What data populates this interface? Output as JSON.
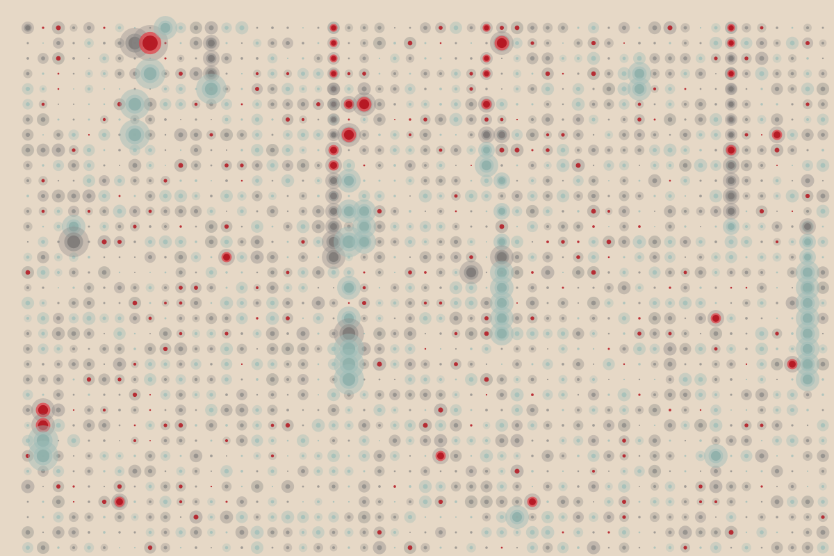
{
  "palette": {
    "background": "#e6d8c6",
    "grey": "#8a8886",
    "teal": "#9ebdb8",
    "red": "#b3141f",
    "red_ring": "#e0424a"
  },
  "grid": {
    "columns": 53,
    "rows": 35
  },
  "dots": [
    {
      "col": 0,
      "row": 0,
      "size": 2,
      "color": "grey"
    },
    {
      "col": 7,
      "row": 1,
      "size": 5,
      "color": "grey"
    },
    {
      "col": 8,
      "row": 1,
      "size": 6,
      "color": "red"
    },
    {
      "col": 9,
      "row": 0,
      "size": 4,
      "color": "teal"
    },
    {
      "col": 8,
      "row": 3,
      "size": 5,
      "color": "teal"
    },
    {
      "col": 7,
      "row": 5,
      "size": 5,
      "color": "teal"
    },
    {
      "col": 7,
      "row": 7,
      "size": 5,
      "color": "teal"
    },
    {
      "col": 12,
      "row": 1,
      "size": 3,
      "color": "grey"
    },
    {
      "col": 12,
      "row": 2,
      "size": 3,
      "color": "grey"
    },
    {
      "col": 12,
      "row": 3,
      "size": 3,
      "color": "grey"
    },
    {
      "col": 12,
      "row": 4,
      "size": 5,
      "color": "teal"
    },
    {
      "col": 3,
      "row": 13,
      "size": 4,
      "color": "teal"
    },
    {
      "col": 3,
      "row": 14,
      "size": 5,
      "color": "grey"
    },
    {
      "col": 1,
      "row": 25,
      "size": 4,
      "color": "red"
    },
    {
      "col": 1,
      "row": 26,
      "size": 4,
      "color": "red"
    },
    {
      "col": 1,
      "row": 27,
      "size": 5,
      "color": "teal"
    },
    {
      "col": 1,
      "row": 28,
      "size": 5,
      "color": "teal"
    },
    {
      "col": 20,
      "row": 0,
      "size": 2,
      "color": "red"
    },
    {
      "col": 20,
      "row": 1,
      "size": 2,
      "color": "red"
    },
    {
      "col": 20,
      "row": 2,
      "size": 2,
      "color": "red"
    },
    {
      "col": 20,
      "row": 3,
      "size": 2,
      "color": "red"
    },
    {
      "col": 20,
      "row": 4,
      "size": 2,
      "color": "grey"
    },
    {
      "col": 20,
      "row": 5,
      "size": 2,
      "color": "grey"
    },
    {
      "col": 20,
      "row": 6,
      "size": 2,
      "color": "grey"
    },
    {
      "col": 20,
      "row": 7,
      "size": 2,
      "color": "grey"
    },
    {
      "col": 20,
      "row": 8,
      "size": 3,
      "color": "red"
    },
    {
      "col": 20,
      "row": 9,
      "size": 3,
      "color": "red"
    },
    {
      "col": 20,
      "row": 10,
      "size": 3,
      "color": "grey"
    },
    {
      "col": 20,
      "row": 11,
      "size": 3,
      "color": "grey"
    },
    {
      "col": 20,
      "row": 12,
      "size": 3,
      "color": "grey"
    },
    {
      "col": 20,
      "row": 13,
      "size": 3,
      "color": "grey"
    },
    {
      "col": 20,
      "row": 14,
      "size": 4,
      "color": "grey"
    },
    {
      "col": 20,
      "row": 15,
      "size": 4,
      "color": "grey"
    },
    {
      "col": 21,
      "row": 5,
      "size": 3,
      "color": "red"
    },
    {
      "col": 21,
      "row": 7,
      "size": 3,
      "color": "red"
    },
    {
      "col": 22,
      "row": 5,
      "size": 3,
      "color": "red"
    },
    {
      "col": 21,
      "row": 10,
      "size": 4,
      "color": "teal"
    },
    {
      "col": 21,
      "row": 12,
      "size": 4,
      "color": "teal"
    },
    {
      "col": 21,
      "row": 14,
      "size": 5,
      "color": "teal"
    },
    {
      "col": 21,
      "row": 17,
      "size": 4,
      "color": "teal"
    },
    {
      "col": 21,
      "row": 19,
      "size": 4,
      "color": "teal"
    },
    {
      "col": 21,
      "row": 20,
      "size": 5,
      "color": "grey"
    },
    {
      "col": 21,
      "row": 21,
      "size": 5,
      "color": "teal"
    },
    {
      "col": 21,
      "row": 22,
      "size": 5,
      "color": "teal"
    },
    {
      "col": 21,
      "row": 23,
      "size": 5,
      "color": "teal"
    },
    {
      "col": 22,
      "row": 12,
      "size": 4,
      "color": "teal"
    },
    {
      "col": 22,
      "row": 13,
      "size": 4,
      "color": "teal"
    },
    {
      "col": 22,
      "row": 14,
      "size": 4,
      "color": "teal"
    },
    {
      "col": 30,
      "row": 0,
      "size": 2,
      "color": "red"
    },
    {
      "col": 30,
      "row": 2,
      "size": 2,
      "color": "red"
    },
    {
      "col": 30,
      "row": 3,
      "size": 2,
      "color": "red"
    },
    {
      "col": 30,
      "row": 5,
      "size": 3,
      "color": "red"
    },
    {
      "col": 30,
      "row": 7,
      "size": 3,
      "color": "grey"
    },
    {
      "col": 30,
      "row": 8,
      "size": 3,
      "color": "teal"
    },
    {
      "col": 30,
      "row": 9,
      "size": 4,
      "color": "teal"
    },
    {
      "col": 31,
      "row": 1,
      "size": 3,
      "color": "red"
    },
    {
      "col": 31,
      "row": 7,
      "size": 3,
      "color": "grey"
    },
    {
      "col": 31,
      "row": 10,
      "size": 3,
      "color": "teal"
    },
    {
      "col": 31,
      "row": 12,
      "size": 3,
      "color": "teal"
    },
    {
      "col": 31,
      "row": 14,
      "size": 3,
      "color": "teal"
    },
    {
      "col": 31,
      "row": 15,
      "size": 4,
      "color": "grey"
    },
    {
      "col": 31,
      "row": 16,
      "size": 4,
      "color": "teal"
    },
    {
      "col": 31,
      "row": 17,
      "size": 4,
      "color": "teal"
    },
    {
      "col": 31,
      "row": 18,
      "size": 4,
      "color": "teal"
    },
    {
      "col": 31,
      "row": 19,
      "size": 4,
      "color": "teal"
    },
    {
      "col": 31,
      "row": 20,
      "size": 4,
      "color": "teal"
    },
    {
      "col": 29,
      "row": 16,
      "size": 4,
      "color": "grey"
    },
    {
      "col": 32,
      "row": 32,
      "size": 4,
      "color": "teal"
    },
    {
      "col": 40,
      "row": 3,
      "size": 4,
      "color": "teal"
    },
    {
      "col": 40,
      "row": 4,
      "size": 4,
      "color": "teal"
    },
    {
      "col": 45,
      "row": 28,
      "size": 4,
      "color": "teal"
    },
    {
      "col": 46,
      "row": 0,
      "size": 2,
      "color": "red"
    },
    {
      "col": 46,
      "row": 1,
      "size": 2,
      "color": "red"
    },
    {
      "col": 46,
      "row": 2,
      "size": 2,
      "color": "grey"
    },
    {
      "col": 46,
      "row": 3,
      "size": 2,
      "color": "red"
    },
    {
      "col": 46,
      "row": 4,
      "size": 2,
      "color": "grey"
    },
    {
      "col": 46,
      "row": 5,
      "size": 2,
      "color": "grey"
    },
    {
      "col": 46,
      "row": 6,
      "size": 2,
      "color": "grey"
    },
    {
      "col": 46,
      "row": 7,
      "size": 2,
      "color": "grey"
    },
    {
      "col": 46,
      "row": 8,
      "size": 3,
      "color": "red"
    },
    {
      "col": 46,
      "row": 9,
      "size": 3,
      "color": "grey"
    },
    {
      "col": 46,
      "row": 10,
      "size": 3,
      "color": "grey"
    },
    {
      "col": 46,
      "row": 11,
      "size": 3,
      "color": "grey"
    },
    {
      "col": 46,
      "row": 12,
      "size": 3,
      "color": "grey"
    },
    {
      "col": 46,
      "row": 13,
      "size": 3,
      "color": "teal"
    },
    {
      "col": 51,
      "row": 13,
      "size": 3,
      "color": "grey"
    },
    {
      "col": 51,
      "row": 14,
      "size": 3,
      "color": "teal"
    },
    {
      "col": 51,
      "row": 15,
      "size": 3,
      "color": "teal"
    },
    {
      "col": 51,
      "row": 16,
      "size": 4,
      "color": "teal"
    },
    {
      "col": 51,
      "row": 17,
      "size": 4,
      "color": "teal"
    },
    {
      "col": 51,
      "row": 18,
      "size": 4,
      "color": "teal"
    },
    {
      "col": 51,
      "row": 19,
      "size": 4,
      "color": "teal"
    },
    {
      "col": 51,
      "row": 20,
      "size": 4,
      "color": "teal"
    },
    {
      "col": 51,
      "row": 21,
      "size": 4,
      "color": "teal"
    },
    {
      "col": 51,
      "row": 22,
      "size": 4,
      "color": "teal"
    },
    {
      "col": 51,
      "row": 23,
      "size": 4,
      "color": "teal"
    },
    {
      "col": 31,
      "row": 1,
      "size": 4,
      "color": "red"
    },
    {
      "col": 22,
      "row": 5,
      "size": 4,
      "color": "red"
    },
    {
      "col": 21,
      "row": 7,
      "size": 4,
      "color": "red"
    },
    {
      "col": 13,
      "row": 15,
      "size": 3,
      "color": "red"
    },
    {
      "col": 49,
      "row": 7,
      "size": 3,
      "color": "red"
    },
    {
      "col": 50,
      "row": 22,
      "size": 3,
      "color": "red"
    },
    {
      "col": 6,
      "row": 31,
      "size": 3,
      "color": "red"
    },
    {
      "col": 33,
      "row": 31,
      "size": 3,
      "color": "red"
    },
    {
      "col": 27,
      "row": 28,
      "size": 3,
      "color": "red"
    },
    {
      "col": 45,
      "row": 19,
      "size": 3,
      "color": "red"
    }
  ]
}
